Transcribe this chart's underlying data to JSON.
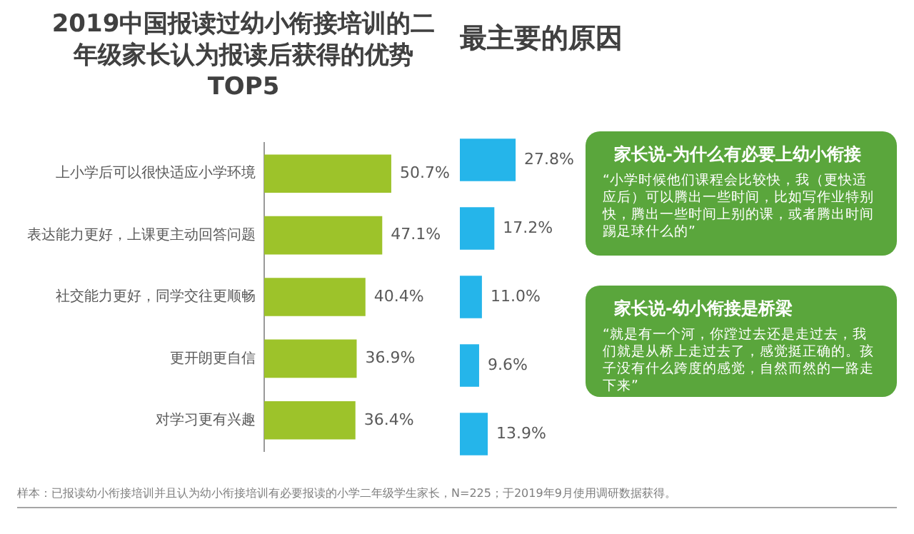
{
  "chart_data": [
    {
      "type": "bar",
      "orientation": "horizontal",
      "title": "2019中国报读过幼小衔接培训的二年级家长认为报读后获得的优势TOP5",
      "categories": [
        "上小学后可以很快适应小学环境",
        "表达能力更好，上课更主动回答问题",
        "社交能力更好，同学交往更顺畅",
        "更开朗更自信",
        "对学习更有兴趣"
      ],
      "values": [
        50.7,
        47.1,
        40.4,
        36.9,
        36.4
      ],
      "color": "#9dc32a",
      "value_labels": [
        "50.7%",
        "47.1%",
        "40.4%",
        "36.9%",
        "36.4%"
      ],
      "annotations": [
        "样本：已报读幼小衔接培训并且认为幼小衔接培训有必要报读的小学二年级学生家长，N=225；于2019年9月使用调研数据获得。"
      ]
    },
    {
      "type": "bar",
      "orientation": "horizontal",
      "title": "最主要的原因",
      "categories": [
        null,
        null,
        null,
        null,
        null
      ],
      "values": [
        27.8,
        17.2,
        11.0,
        9.6,
        13.9
      ],
      "color": "#25b5ea",
      "value_labels": [
        "27.8%",
        "17.2%",
        "11.0%",
        "9.6%",
        "13.9%"
      ],
      "annotations": [
        "家长说-为什么有必要上幼小衔接",
        "“小学时候他们课程会比较快，我（更快适应后）可以腾出一些时间，比如写作业特别快，腾出一些时间上别的课，或者腾出时间踢足球什么的”",
        "家长说-幼小衔接是桥梁",
        "“就是有一个河，你蹚过去还是走过去，我们就是从桥上走过去了，感觉挺正确的。孩子没有什么跨度的感觉，自然而然的一路走下来”"
      ]
    }
  ]
}
